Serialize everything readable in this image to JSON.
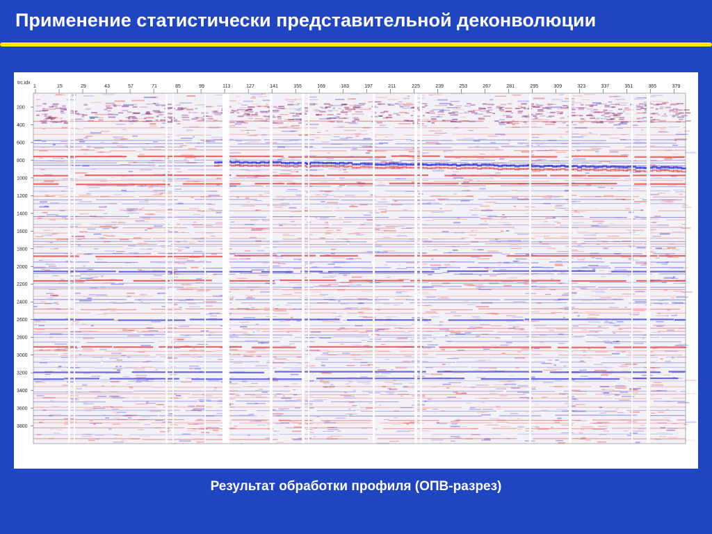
{
  "slide": {
    "title": "Применение статистически представительной деконволюции",
    "caption": "Результат обработки профиля (ОПВ-разрез)"
  },
  "colors": {
    "background": "#1f45c2",
    "accent": "#ffe800",
    "positive": "#e0302a",
    "negative": "#2b2fd6"
  },
  "figure": {
    "top_axis_label": "trc.idx",
    "top_ticks": [
      "1",
      "15",
      "29",
      "43",
      "57",
      "71",
      "85",
      "99",
      "113",
      "127",
      "141",
      "155",
      "169",
      "183",
      "197",
      "211",
      "225",
      "239",
      "253",
      "267",
      "281",
      "295",
      "309",
      "323",
      "337",
      "351",
      "365",
      "379"
    ],
    "left_ticks": [
      "200",
      "400",
      "600",
      "800",
      "1000",
      "1200",
      "1400",
      "1600",
      "1800",
      "2000",
      "2200",
      "2400",
      "2600",
      "2800",
      "3000",
      "3200",
      "3400",
      "3600",
      "3800"
    ]
  }
}
